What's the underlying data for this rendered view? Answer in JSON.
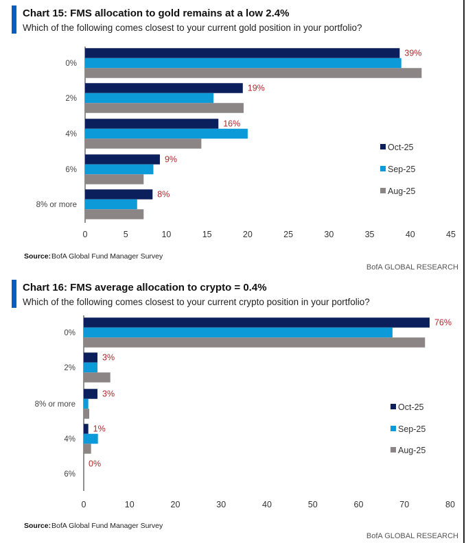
{
  "colors": {
    "Oct-25": "#0b1f5c",
    "Sep-25": "#0d9ad9",
    "Aug-25": "#8c8586",
    "label": "#b0282e",
    "accent": "#0a5bc4"
  },
  "chart_data": [
    {
      "type": "bar",
      "orientation": "horizontal",
      "title": "Chart 15: FMS allocation to gold remains at a low 2.4%",
      "subtitle": "Which of the following comes closest to your current gold position in your portfolio?",
      "categories": [
        "0%",
        "2%",
        "4%",
        "6%",
        "8% or more"
      ],
      "series": [
        {
          "name": "Oct-25",
          "values": [
            38.7,
            19.4,
            16.4,
            9.2,
            8.3
          ]
        },
        {
          "name": "Sep-25",
          "values": [
            38.9,
            15.8,
            20.0,
            8.4,
            6.4
          ]
        },
        {
          "name": "Aug-25",
          "values": [
            41.4,
            19.5,
            14.3,
            7.2,
            7.2
          ]
        }
      ],
      "data_labels": [
        "39%",
        "19%",
        "16%",
        "9%",
        "8%"
      ],
      "xlim": [
        0,
        45
      ],
      "xticks": [
        "0",
        "5",
        "10",
        "15",
        "20",
        "25",
        "30",
        "35",
        "40",
        "45"
      ],
      "legend": "right",
      "source_label": "Source:",
      "source": "BofA Global Fund Manager Survey",
      "credit": "BofA GLOBAL RESEARCH"
    },
    {
      "type": "bar",
      "orientation": "horizontal",
      "title": "Chart 16: FMS average allocation to crypto = 0.4%",
      "subtitle": "Which of the following comes closest to your current crypto position in your portfolio?",
      "categories": [
        "0%",
        "2%",
        "8% or more",
        "4%",
        "6%"
      ],
      "series": [
        {
          "name": "Oct-25",
          "values": [
            75.5,
            3.0,
            3.0,
            1.0,
            0
          ]
        },
        {
          "name": "Sep-25",
          "values": [
            67.4,
            3.0,
            1.0,
            3.1,
            0
          ]
        },
        {
          "name": "Aug-25",
          "values": [
            74.5,
            5.8,
            1.2,
            1.6,
            0
          ]
        }
      ],
      "data_labels": [
        "76%",
        "3%",
        "3%",
        "1%",
        "0%"
      ],
      "xlim": [
        0,
        80
      ],
      "xticks": [
        "0",
        "10",
        "20",
        "30",
        "40",
        "50",
        "60",
        "70",
        "80"
      ],
      "legend": "right",
      "source_label": "Source:",
      "source": "BofA Global Fund Manager Survey",
      "credit": "BofA GLOBAL RESEARCH"
    }
  ]
}
